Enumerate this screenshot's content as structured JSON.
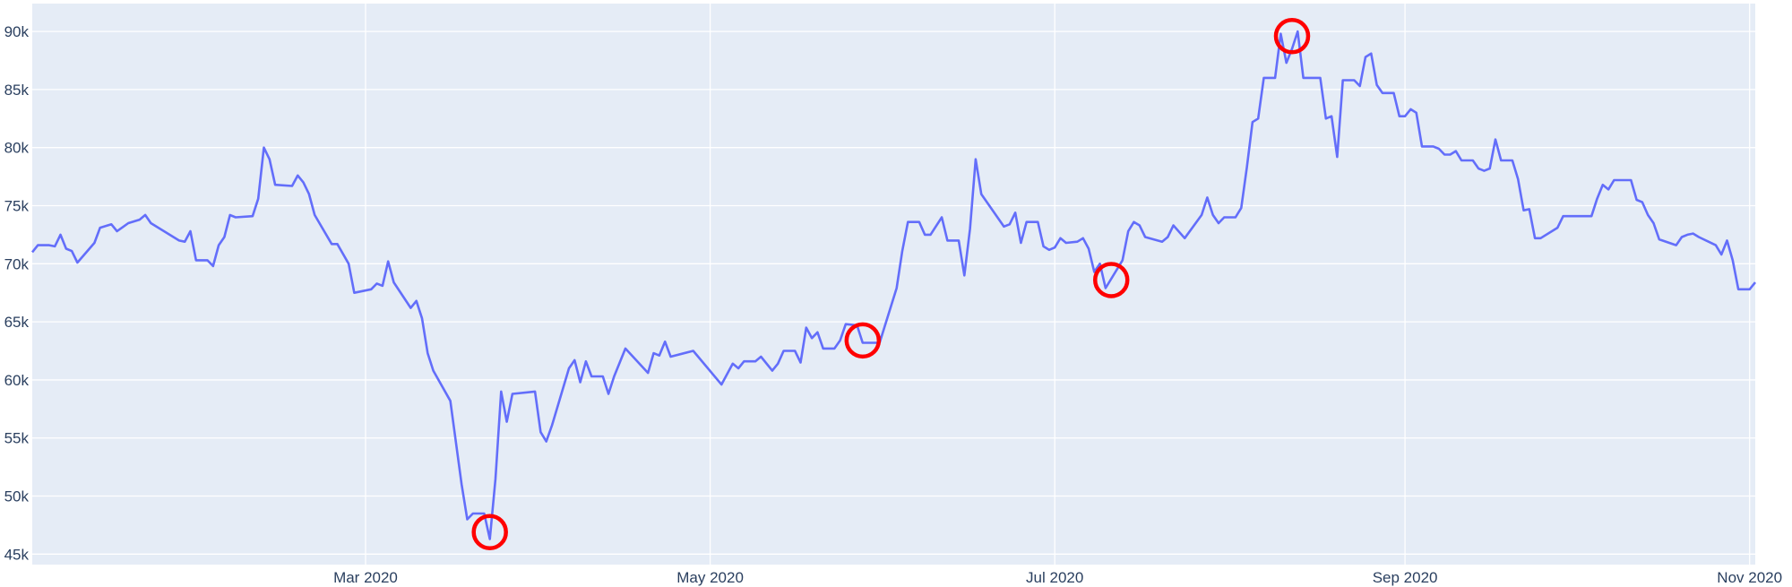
{
  "chart_data": {
    "type": "line",
    "x": [
      "2020-01-02",
      "2020-01-03",
      "2020-01-05",
      "2020-01-06",
      "2020-01-07",
      "2020-01-08",
      "2020-01-09",
      "2020-01-10",
      "2020-01-13",
      "2020-01-14",
      "2020-01-16",
      "2020-01-17",
      "2020-01-19",
      "2020-01-21",
      "2020-01-22",
      "2020-01-23",
      "2020-01-28",
      "2020-01-29",
      "2020-01-30",
      "2020-01-31",
      "2020-02-02",
      "2020-02-03",
      "2020-02-04",
      "2020-02-05",
      "2020-02-06",
      "2020-02-07",
      "2020-02-10",
      "2020-02-11",
      "2020-02-12",
      "2020-02-13",
      "2020-02-14",
      "2020-02-17",
      "2020-02-18",
      "2020-02-19",
      "2020-02-20",
      "2020-02-21",
      "2020-02-24",
      "2020-02-25",
      "2020-02-27",
      "2020-02-28",
      "2020-03-02",
      "2020-03-03",
      "2020-03-04",
      "2020-03-05",
      "2020-03-06",
      "2020-03-09",
      "2020-03-10",
      "2020-03-11",
      "2020-03-12",
      "2020-03-13",
      "2020-03-16",
      "2020-03-18",
      "2020-03-19",
      "2020-03-20",
      "2020-03-22",
      "2020-03-23",
      "2020-03-24",
      "2020-03-25",
      "2020-03-26",
      "2020-03-27",
      "2020-03-31",
      "2020-04-01",
      "2020-04-02",
      "2020-04-03",
      "2020-04-06",
      "2020-04-07",
      "2020-04-08",
      "2020-04-09",
      "2020-04-10",
      "2020-04-12",
      "2020-04-13",
      "2020-04-14",
      "2020-04-16",
      "2020-04-20",
      "2020-04-21",
      "2020-04-22",
      "2020-04-23",
      "2020-04-24",
      "2020-04-28",
      "2020-05-03",
      "2020-05-05",
      "2020-05-06",
      "2020-05-07",
      "2020-05-09",
      "2020-05-10",
      "2020-05-12",
      "2020-05-13",
      "2020-05-14",
      "2020-05-16",
      "2020-05-17",
      "2020-05-18",
      "2020-05-19",
      "2020-05-20",
      "2020-05-21",
      "2020-05-23",
      "2020-05-24",
      "2020-05-25",
      "2020-05-27",
      "2020-05-28",
      "2020-05-31",
      "2020-06-03",
      "2020-06-04",
      "2020-06-05",
      "2020-06-07",
      "2020-06-08",
      "2020-06-09",
      "2020-06-11",
      "2020-06-12",
      "2020-06-14",
      "2020-06-15",
      "2020-06-16",
      "2020-06-17",
      "2020-06-18",
      "2020-06-22",
      "2020-06-23",
      "2020-06-24",
      "2020-06-25",
      "2020-06-26",
      "2020-06-28",
      "2020-06-29",
      "2020-06-30",
      "2020-07-01",
      "2020-07-02",
      "2020-07-03",
      "2020-07-05",
      "2020-07-06",
      "2020-07-07",
      "2020-07-08",
      "2020-07-09",
      "2020-07-10",
      "2020-07-13",
      "2020-07-14",
      "2020-07-15",
      "2020-07-16",
      "2020-07-17",
      "2020-07-20",
      "2020-07-21",
      "2020-07-22",
      "2020-07-24",
      "2020-07-27",
      "2020-07-28",
      "2020-07-29",
      "2020-07-30",
      "2020-07-31",
      "2020-08-02",
      "2020-08-03",
      "2020-08-04",
      "2020-08-05",
      "2020-08-06",
      "2020-08-07",
      "2020-08-09",
      "2020-08-10",
      "2020-08-11",
      "2020-08-12",
      "2020-08-13",
      "2020-08-14",
      "2020-08-17",
      "2020-08-18",
      "2020-08-19",
      "2020-08-20",
      "2020-08-21",
      "2020-08-23",
      "2020-08-24",
      "2020-08-25",
      "2020-08-26",
      "2020-08-27",
      "2020-08-28",
      "2020-08-30",
      "2020-08-31",
      "2020-09-01",
      "2020-09-02",
      "2020-09-03",
      "2020-09-04",
      "2020-09-06",
      "2020-09-07",
      "2020-09-08",
      "2020-09-09",
      "2020-09-10",
      "2020-09-11",
      "2020-09-13",
      "2020-09-14",
      "2020-09-15",
      "2020-09-16",
      "2020-09-17",
      "2020-09-18",
      "2020-09-20",
      "2020-09-21",
      "2020-09-22",
      "2020-09-23",
      "2020-09-24",
      "2020-09-25",
      "2020-09-28",
      "2020-09-29",
      "2020-10-04",
      "2020-10-05",
      "2020-10-06",
      "2020-10-07",
      "2020-10-08",
      "2020-10-11",
      "2020-10-12",
      "2020-10-13",
      "2020-10-14",
      "2020-10-15",
      "2020-10-16",
      "2020-10-19",
      "2020-10-20",
      "2020-10-21",
      "2020-10-22",
      "2020-10-23",
      "2020-10-26",
      "2020-10-27",
      "2020-10-28",
      "2020-10-29",
      "2020-10-30",
      "2020-11-01",
      "2020-11-02"
    ],
    "values": [
      71000,
      71600,
      71600,
      71500,
      72500,
      71300,
      71100,
      70100,
      71800,
      73100,
      73400,
      72800,
      73500,
      73800,
      74200,
      73500,
      72000,
      71900,
      72800,
      70300,
      70300,
      69800,
      71600,
      72300,
      74200,
      74000,
      74100,
      75600,
      80000,
      79000,
      76800,
      76700,
      77600,
      77000,
      76000,
      74200,
      71700,
      71700,
      70000,
      67500,
      67800,
      68300,
      68100,
      70200,
      68400,
      66200,
      66800,
      65300,
      62300,
      60800,
      58200,
      51000,
      48000,
      48500,
      48500,
      46300,
      51500,
      59000,
      56400,
      58800,
      59000,
      55500,
      54700,
      56100,
      61000,
      61700,
      59800,
      61600,
      60300,
      60300,
      58800,
      60300,
      62700,
      60600,
      62300,
      62100,
      63300,
      62000,
      62500,
      59600,
      61400,
      61000,
      61600,
      61600,
      62000,
      60800,
      61400,
      62500,
      62500,
      61500,
      64500,
      63600,
      64100,
      62700,
      62700,
      63400,
      64800,
      64700,
      63200,
      63200,
      67900,
      71100,
      73600,
      73600,
      72500,
      72500,
      74000,
      72000,
      72000,
      69000,
      73000,
      79000,
      76000,
      73200,
      73400,
      74400,
      71800,
      73600,
      73600,
      71500,
      71200,
      71400,
      72200,
      71800,
      71900,
      72200,
      71300,
      69300,
      70000,
      67900,
      70300,
      72800,
      73600,
      73300,
      72300,
      71900,
      72300,
      73300,
      72200,
      74200,
      75700,
      74200,
      73500,
      74000,
      74000,
      74800,
      78300,
      82200,
      82500,
      86000,
      86000,
      89800,
      87300,
      88500,
      90000,
      86000,
      86000,
      82500,
      82700,
      79200,
      85800,
      85800,
      85300,
      87800,
      88100,
      85400,
      84700,
      84700,
      82700,
      82700,
      83300,
      83000,
      80100,
      80100,
      79900,
      79400,
      79400,
      79700,
      78900,
      78900,
      78200,
      78000,
      78200,
      80700,
      78900,
      78900,
      77300,
      74600,
      74700,
      72200,
      72200,
      73100,
      74100,
      74100,
      75600,
      76800,
      76400,
      77200,
      77200,
      75500,
      75300,
      74200,
      73500,
      72100,
      71600,
      72300,
      72500,
      72600,
      72300,
      71600,
      70800,
      72000,
      70300,
      67800,
      67800,
      68400
    ],
    "color": "#636efa",
    "highlights": {
      "x": [
        "2020-03-23",
        "2020-05-28",
        "2020-07-11",
        "2020-08-12"
      ],
      "values": [
        46900,
        63400,
        68600,
        89600
      ],
      "color": "#ff0000"
    },
    "xlim": [
      "2020-01-02",
      "2020-11-02"
    ],
    "xticks": [
      {
        "value": "2020-03-01",
        "label": "Mar 2020"
      },
      {
        "value": "2020-05-01",
        "label": "May 2020"
      },
      {
        "value": "2020-07-01",
        "label": "Jul 2020"
      },
      {
        "value": "2020-09-01",
        "label": "Sep 2020"
      },
      {
        "value": "2020-11-01",
        "label": "Nov 2020"
      }
    ],
    "ylim": [
      44100,
      92400
    ],
    "yticks": [
      {
        "value": 45000,
        "label": "45k"
      },
      {
        "value": 50000,
        "label": "50k"
      },
      {
        "value": 55000,
        "label": "55k"
      },
      {
        "value": 60000,
        "label": "60k"
      },
      {
        "value": 65000,
        "label": "65k"
      },
      {
        "value": 70000,
        "label": "70k"
      },
      {
        "value": 75000,
        "label": "75k"
      },
      {
        "value": 80000,
        "label": "80k"
      },
      {
        "value": 85000,
        "label": "85k"
      },
      {
        "value": 90000,
        "label": "90k"
      }
    ],
    "grid": true
  }
}
